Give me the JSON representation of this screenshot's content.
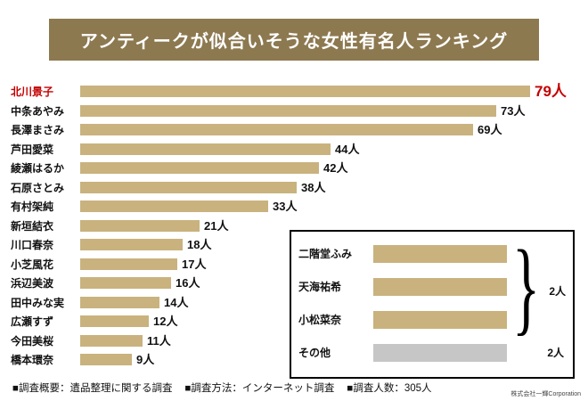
{
  "title": "アンティークが似合いそうな女性有名人ランキング",
  "colors": {
    "banner_bg": "#8D7950",
    "bar": "#C9B27E",
    "highlight": "#C30000",
    "other_bar": "#C6C6C6"
  },
  "chart_data": {
    "type": "bar",
    "orientation": "horizontal",
    "title": "アンティークが似合いそうな女性有名人ランキング",
    "unit": "人",
    "max_value": 79,
    "categories": [
      "北川景子",
      "中条あやみ",
      "長澤まさみ",
      "芦田愛菜",
      "綾瀬はるか",
      "石原さとみ",
      "有村架純",
      "新垣結衣",
      "川口春奈",
      "小芝風花",
      "浜辺美波",
      "田中みな実",
      "広瀬すず",
      "今田美桜",
      "橋本環奈"
    ],
    "values": [
      79,
      73,
      69,
      44,
      42,
      38,
      33,
      21,
      18,
      17,
      16,
      14,
      12,
      11,
      9
    ],
    "highlight_index": 0,
    "inset": {
      "grouped_items": [
        {
          "label": "二階堂ふみ",
          "value": 2
        },
        {
          "label": "天海祐希",
          "value": 2
        },
        {
          "label": "小松菜奈",
          "value": 2
        }
      ],
      "group_value_label": "2人",
      "other": {
        "label": "その他",
        "value": 2,
        "value_label": "2人"
      }
    }
  },
  "footer": {
    "items": [
      "■調査概要：遺品整理に関する調査",
      "■調査方法：インターネット調査",
      "■調査人数：305人"
    ],
    "credit": "株式会社一輝Corporation"
  }
}
